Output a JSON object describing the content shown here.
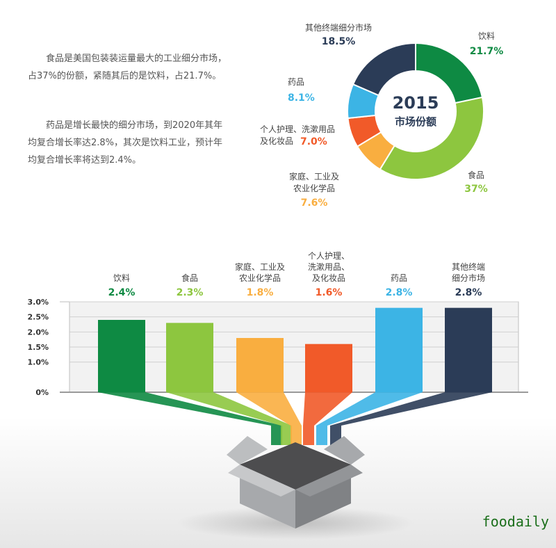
{
  "intro": {
    "paragraph_1": "食品是美国包装装运量最大的工业细分市场，占37%的份额，紧随其后的是饮料，占21.7%。",
    "paragraph_2": "药品是增长最快的细分市场，到2020年其年均复合增长率达2.8%，其次是饮料工业，预计年均复合增长率将达到2.4%。"
  },
  "watermark": "foodaily",
  "chart_data": [
    {
      "type": "pie",
      "variant": "donut",
      "center_title": "2015",
      "center_subtitle": "市场份额",
      "slices": [
        {
          "label": "饮料",
          "value": 21.7,
          "value_label": "21.7%",
          "color": "#0e8a43"
        },
        {
          "label": "食品",
          "value": 37,
          "value_label": "37%",
          "color": "#8dc63f"
        },
        {
          "label": "家庭、工业及农业化学品",
          "value": 7.6,
          "value_label": "7.6%",
          "color": "#f9ae40"
        },
        {
          "label": "个人护理、洗漱用品及化妆品",
          "value": 7.0,
          "value_label": "7.0%",
          "color": "#f15a29"
        },
        {
          "label": "药品",
          "value": 8.1,
          "value_label": "8.1%",
          "color": "#3cb4e5"
        },
        {
          "label": "其他终端细分市场",
          "value": 18.5,
          "value_label": "18.5%",
          "color": "#2b3c57"
        }
      ]
    },
    {
      "type": "bar",
      "categories": [
        "饮料",
        "食品",
        "家庭、工业及农业化学品",
        "个人护理、洗漱用品、及化妆品",
        "药品",
        "其他终端细分市场"
      ],
      "category_lines": [
        [
          "饮料"
        ],
        [
          "食品"
        ],
        [
          "家庭、工业及",
          "农业化学品"
        ],
        [
          "个人护理、",
          "洗漱用品、",
          "及化妆品"
        ],
        [
          "药品"
        ],
        [
          "其他终端",
          "细分市场"
        ]
      ],
      "values": [
        2.4,
        2.3,
        1.8,
        1.6,
        2.8,
        2.8
      ],
      "value_labels": [
        "2.4%",
        "2.3%",
        "1.8%",
        "1.6%",
        "2.8%",
        "2.8%"
      ],
      "colors": [
        "#0e8a43",
        "#8dc63f",
        "#f9ae40",
        "#f15a29",
        "#3cb4e5",
        "#2b3c57"
      ],
      "ylim": [
        0,
        3.0
      ],
      "y_ticks": [
        "0%",
        "1.0%",
        "1.5%",
        "2.0%",
        "2.5%",
        "3.0%"
      ],
      "grid": true
    }
  ]
}
